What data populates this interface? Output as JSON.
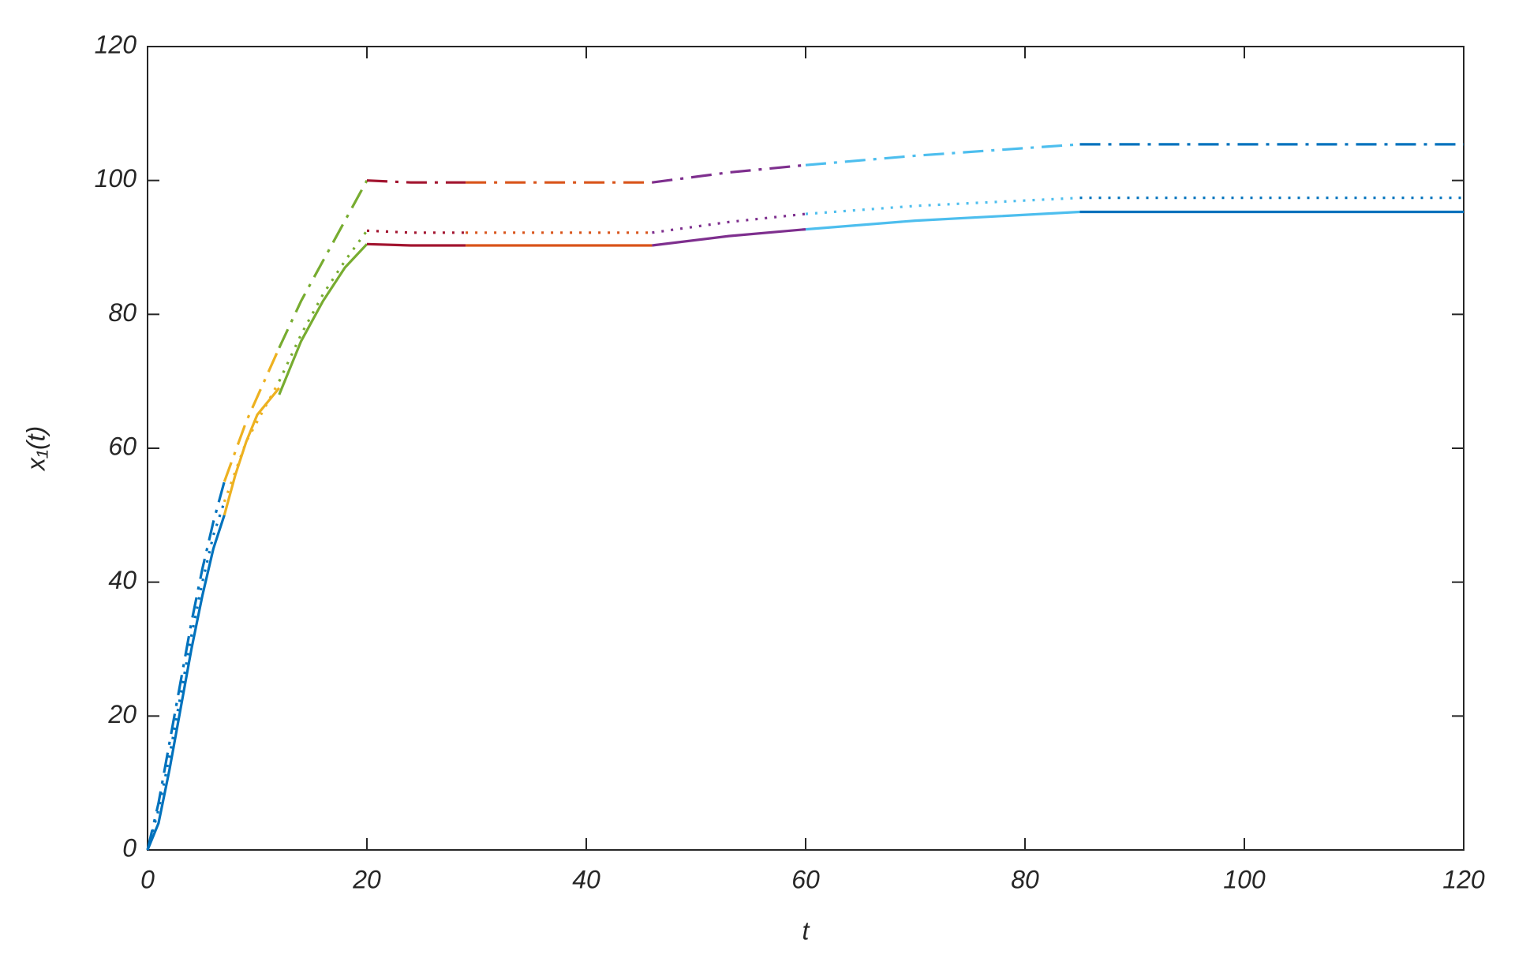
{
  "chart_data": {
    "type": "line",
    "xlabel": "t",
    "ylabel": "x₁(t)",
    "xlim": [
      0,
      120
    ],
    "ylim": [
      0,
      120
    ],
    "xticks": [
      0,
      20,
      40,
      60,
      80,
      100,
      120
    ],
    "yticks": [
      0,
      20,
      40,
      60,
      80,
      100,
      120
    ],
    "series": [
      {
        "color": "#0072bd",
        "linestyle": "solid",
        "x": [
          0,
          1,
          2,
          3,
          4,
          5,
          6,
          7
        ],
        "values": [
          0,
          4,
          12,
          21,
          30,
          38,
          45,
          50
        ]
      },
      {
        "color": "#edb120",
        "linestyle": "solid",
        "x": [
          7,
          8,
          9,
          10,
          11,
          12
        ],
        "values": [
          50,
          56,
          61,
          65,
          67,
          69
        ]
      },
      {
        "color": "#77ac30",
        "linestyle": "solid",
        "x": [
          12,
          14,
          16,
          18,
          20
        ],
        "values": [
          68,
          76,
          82,
          87,
          90.5
        ]
      },
      {
        "color": "#a2142f",
        "linestyle": "solid",
        "x": [
          20,
          24,
          29
        ],
        "values": [
          90.5,
          90.3,
          90.3
        ]
      },
      {
        "color": "#d95319",
        "linestyle": "solid",
        "x": [
          29,
          46
        ],
        "values": [
          90.3,
          90.3
        ]
      },
      {
        "color": "#7e2f8e",
        "linestyle": "solid",
        "x": [
          46,
          53,
          60
        ],
        "values": [
          90.3,
          91.7,
          92.7
        ]
      },
      {
        "color": "#4dbeee",
        "linestyle": "solid",
        "x": [
          60,
          70,
          85
        ],
        "values": [
          92.7,
          94,
          95.3
        ]
      },
      {
        "color": "#0072bd",
        "linestyle": "solid",
        "x": [
          85,
          120
        ],
        "values": [
          95.3,
          95.3
        ]
      },
      {
        "color": "#0072bd",
        "linestyle": "dotted",
        "x": [
          0,
          1,
          2,
          3,
          4,
          5,
          6,
          7
        ],
        "values": [
          0,
          6,
          14,
          23,
          32,
          40,
          47,
          52
        ]
      },
      {
        "color": "#edb120",
        "linestyle": "dotted",
        "x": [
          7,
          9,
          12
        ],
        "values": [
          52,
          61,
          70
        ]
      },
      {
        "color": "#77ac30",
        "linestyle": "dotted",
        "x": [
          12,
          14,
          16,
          18,
          20
        ],
        "values": [
          70,
          77,
          83,
          88,
          92.5
        ]
      },
      {
        "color": "#a2142f",
        "linestyle": "dotted",
        "x": [
          20,
          24,
          29
        ],
        "values": [
          92.5,
          92.2,
          92.2
        ]
      },
      {
        "color": "#d95319",
        "linestyle": "dotted",
        "x": [
          29,
          46
        ],
        "values": [
          92.2,
          92.2
        ]
      },
      {
        "color": "#7e2f8e",
        "linestyle": "dotted",
        "x": [
          46,
          53,
          60
        ],
        "values": [
          92.2,
          93.8,
          95
        ]
      },
      {
        "color": "#4dbeee",
        "linestyle": "dotted",
        "x": [
          60,
          70,
          85
        ],
        "values": [
          95,
          96.2,
          97.4
        ]
      },
      {
        "color": "#0072bd",
        "linestyle": "dotted",
        "x": [
          85,
          120
        ],
        "values": [
          97.4,
          97.4
        ]
      },
      {
        "color": "#0072bd",
        "linestyle": "dashdot",
        "x": [
          0,
          1,
          2,
          3,
          4,
          5,
          6,
          7
        ],
        "values": [
          0,
          7,
          16,
          25,
          34,
          42,
          49,
          55
        ]
      },
      {
        "color": "#edb120",
        "linestyle": "dashdot",
        "x": [
          7,
          9,
          12
        ],
        "values": [
          55,
          64,
          75
        ]
      },
      {
        "color": "#77ac30",
        "linestyle": "dashdot",
        "x": [
          12,
          14,
          16,
          18,
          20
        ],
        "values": [
          75,
          82,
          88,
          94,
          100
        ]
      },
      {
        "color": "#a2142f",
        "linestyle": "dashdot",
        "x": [
          20,
          24,
          29
        ],
        "values": [
          100,
          99.7,
          99.7
        ]
      },
      {
        "color": "#d95319",
        "linestyle": "dashdot",
        "x": [
          29,
          46
        ],
        "values": [
          99.7,
          99.7
        ]
      },
      {
        "color": "#7e2f8e",
        "linestyle": "dashdot",
        "x": [
          46,
          53,
          60
        ],
        "values": [
          99.7,
          101.2,
          102.3
        ]
      },
      {
        "color": "#4dbeee",
        "linestyle": "dashdot",
        "x": [
          60,
          70,
          85
        ],
        "values": [
          102.3,
          103.7,
          105.4
        ]
      },
      {
        "color": "#0072bd",
        "linestyle": "dashdot",
        "x": [
          85,
          120
        ],
        "values": [
          105.4,
          105.4
        ]
      }
    ]
  }
}
